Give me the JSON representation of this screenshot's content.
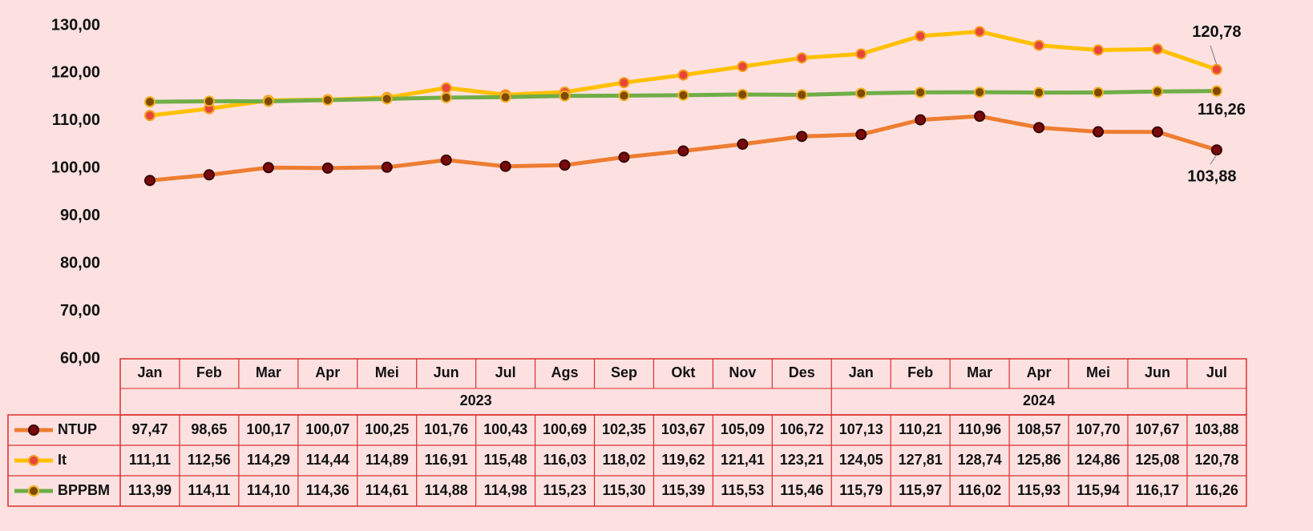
{
  "chart_data": {
    "type": "line",
    "category_groups": [
      {
        "name": "2023",
        "categories": [
          "Jan",
          "Feb",
          "Mar",
          "Apr",
          "Mei",
          "Jun",
          "Jul",
          "Ags",
          "Sep",
          "Okt",
          "Nov",
          "Des"
        ]
      },
      {
        "name": "2024",
        "categories": [
          "Jan",
          "Feb",
          "Mar",
          "Apr",
          "Mei",
          "Jun",
          "Jul"
        ]
      }
    ],
    "ylim": [
      60,
      130
    ],
    "yticks": [
      {
        "value": 60,
        "label": "60,00"
      },
      {
        "value": 70,
        "label": "70,00"
      },
      {
        "value": 80,
        "label": "80,00"
      },
      {
        "value": 90,
        "label": "90,00"
      },
      {
        "value": 100,
        "label": "100,00"
      },
      {
        "value": 110,
        "label": "110,00"
      },
      {
        "value": 120,
        "label": "120,00"
      },
      {
        "value": 130,
        "label": "130,00"
      }
    ],
    "grid": false,
    "series": [
      {
        "name": "NTUP",
        "color": "#ed7d31",
        "marker_color": "#7a0a0a",
        "marker_edge": "#3a0000",
        "values": [
          97.47,
          98.65,
          100.17,
          100.07,
          100.25,
          101.76,
          100.43,
          100.69,
          102.35,
          103.67,
          105.09,
          106.72,
          107.13,
          110.21,
          110.96,
          108.57,
          107.7,
          107.67,
          103.88
        ],
        "value_labels": [
          "97,47",
          "98,65",
          "100,17",
          "100,07",
          "100,25",
          "101,76",
          "100,43",
          "100,69",
          "102,35",
          "103,67",
          "105,09",
          "106,72",
          "107,13",
          "110,21",
          "110,96",
          "108,57",
          "107,70",
          "107,67",
          "103,88"
        ]
      },
      {
        "name": "It",
        "color": "#ffc000",
        "marker_color": "#e8453a",
        "marker_edge": "#f4a020",
        "values": [
          111.11,
          112.56,
          114.29,
          114.44,
          114.89,
          116.91,
          115.48,
          116.03,
          118.02,
          119.62,
          121.41,
          123.21,
          124.05,
          127.81,
          128.74,
          125.86,
          124.86,
          125.08,
          120.78
        ],
        "value_labels": [
          "111,11",
          "112,56",
          "114,29",
          "114,44",
          "114,89",
          "116,91",
          "115,48",
          "116,03",
          "118,02",
          "119,62",
          "121,41",
          "123,21",
          "124,05",
          "127,81",
          "128,74",
          "125,86",
          "124,86",
          "125,08",
          "120,78"
        ]
      },
      {
        "name": "BPPBM",
        "color": "#70ad47",
        "marker_color": "#7f4a00",
        "marker_edge": "#f0b020",
        "values": [
          113.99,
          114.11,
          114.1,
          114.36,
          114.61,
          114.88,
          114.98,
          115.23,
          115.3,
          115.39,
          115.53,
          115.46,
          115.79,
          115.97,
          116.02,
          115.93,
          115.94,
          116.17,
          116.26
        ],
        "value_labels": [
          "113,99",
          "114,11",
          "114,10",
          "114,36",
          "114,61",
          "114,88",
          "114,98",
          "115,23",
          "115,30",
          "115,39",
          "115,53",
          "115,46",
          "115,79",
          "115,97",
          "116,02",
          "115,93",
          "115,94",
          "116,17",
          "116,26"
        ]
      }
    ]
  }
}
